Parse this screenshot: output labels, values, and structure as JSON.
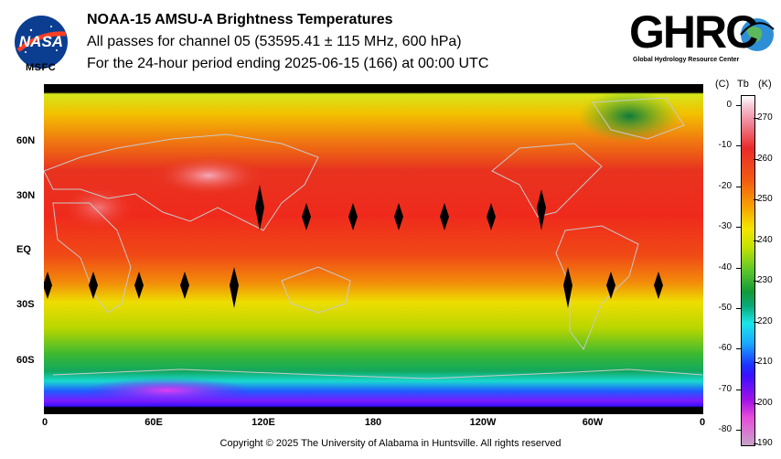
{
  "header": {
    "title": "NOAA-15 AMSU-A Brightness Temperatures",
    "subtitle": "All passes for channel 05 (53595.41 ± 115 MHz, 600 hPa)",
    "period": "For the 24-hour period ending 2025-06-15 (166) at 00:00 UTC"
  },
  "logos": {
    "nasa_icon": "nasa-meatball-icon",
    "nasa_sub": "MSFC",
    "ghrc_icon": "ghrc-globe-icon",
    "ghrc_tagline": "Global Hydrology Resource Center"
  },
  "map": {
    "lat_labels": [
      "60N",
      "30N",
      "EQ",
      "30S",
      "60S"
    ],
    "lon_labels": [
      "0",
      "60E",
      "120E",
      "180",
      "120W",
      "60W",
      "0"
    ]
  },
  "colorbar": {
    "header_c": "(C)",
    "header_tb": "Tb",
    "header_k": "(K)",
    "celsius_ticks": [
      "0",
      "-10",
      "-20",
      "-30",
      "-40",
      "-50",
      "-60",
      "-70",
      "-80"
    ],
    "kelvin_ticks": [
      "270",
      "260",
      "250",
      "240",
      "230",
      "220",
      "210",
      "200",
      "190"
    ]
  },
  "footer": {
    "copyright": "Copyright © 2025 The University of Alabama in Huntsville.  All rights reserved"
  }
}
